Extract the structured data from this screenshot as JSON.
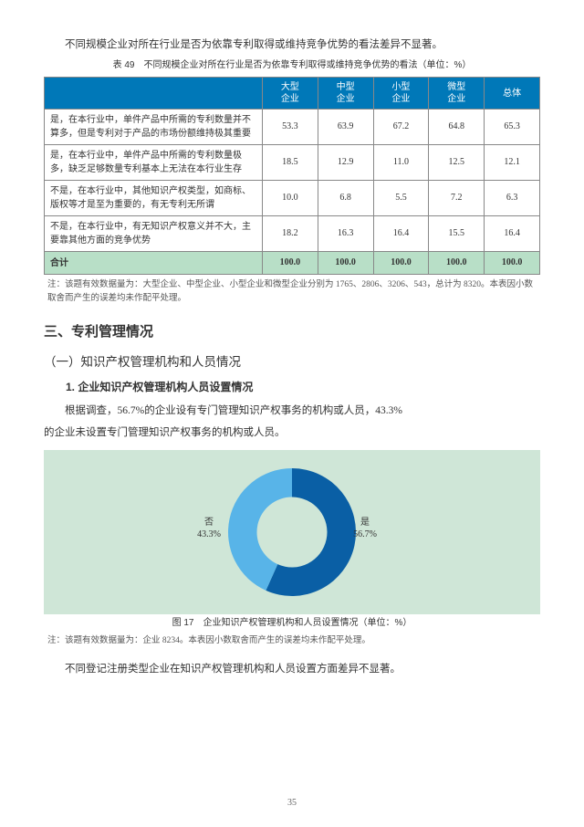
{
  "intro_para": "不同规模企业对所在行业是否为依靠专利取得或维持竞争优势的看法差异不显著。",
  "table": {
    "caption": "表 49　不同规模企业对所在行业是否为依靠专利取得或维持竞争优势的看法（单位：%）",
    "columns": [
      "大型\n企业",
      "中型\n企业",
      "小型\n企业",
      "微型\n企业",
      "总体"
    ],
    "rows": [
      {
        "label": "是，在本行业中，单件产品中所需的专利数量并不算多，但是专利对于产品的市场份额维持极其重要",
        "vals": [
          "53.3",
          "63.9",
          "67.2",
          "64.8",
          "65.3"
        ]
      },
      {
        "label": "是，在本行业中，单件产品中所需的专利数量极多，缺乏足够数量专利基本上无法在本行业生存",
        "vals": [
          "18.5",
          "12.9",
          "11.0",
          "12.5",
          "12.1"
        ]
      },
      {
        "label": "不是，在本行业中，其他知识产权类型，如商标、版权等才是至为重要的，有无专利无所谓",
        "vals": [
          "10.0",
          "6.8",
          "5.5",
          "7.2",
          "6.3"
        ]
      },
      {
        "label": "不是，在本行业中，有无知识产权意义并不大，主要靠其他方面的竞争优势",
        "vals": [
          "18.2",
          "16.3",
          "16.4",
          "15.5",
          "16.4"
        ]
      }
    ],
    "total": {
      "label": "合计",
      "vals": [
        "100.0",
        "100.0",
        "100.0",
        "100.0",
        "100.0"
      ]
    },
    "note": "注：该题有效数据量为：大型企业、中型企业、小型企业和微型企业分别为 1765、2806、3206、543，总计为 8320。本表因小数取舍而产生的误差均未作配平处理。"
  },
  "h1": "三、专利管理情况",
  "h2": "（一）知识产权管理机构和人员情况",
  "h3": "1. 企业知识产权管理机构人员设置情况",
  "para2_a": "根据调查，56.7%的企业设有专门管理知识产权事务的机构或人员，43.3%",
  "para2_b": "的企业未设置专门管理知识产权事务的机构或人员。",
  "chart": {
    "type": "donut",
    "background_color": "#cfe6d7",
    "series": [
      {
        "label": "是\n56.7%",
        "value": 56.7,
        "color": "#0a5fa5"
      },
      {
        "label": "否\n43.3%",
        "value": 43.3,
        "color": "#58b4e8"
      }
    ],
    "inner_radius": 0.55,
    "caption": "图 17　企业知识产权管理机构和人员设置情况（单位：%）",
    "note": "注：该题有效数据量为：企业 8234。本表因小数取舍而产生的误差均未作配平处理。"
  },
  "para3": "不同登记注册类型企业在知识产权管理机构和人员设置方面差异不显著。",
  "page_num": "35"
}
